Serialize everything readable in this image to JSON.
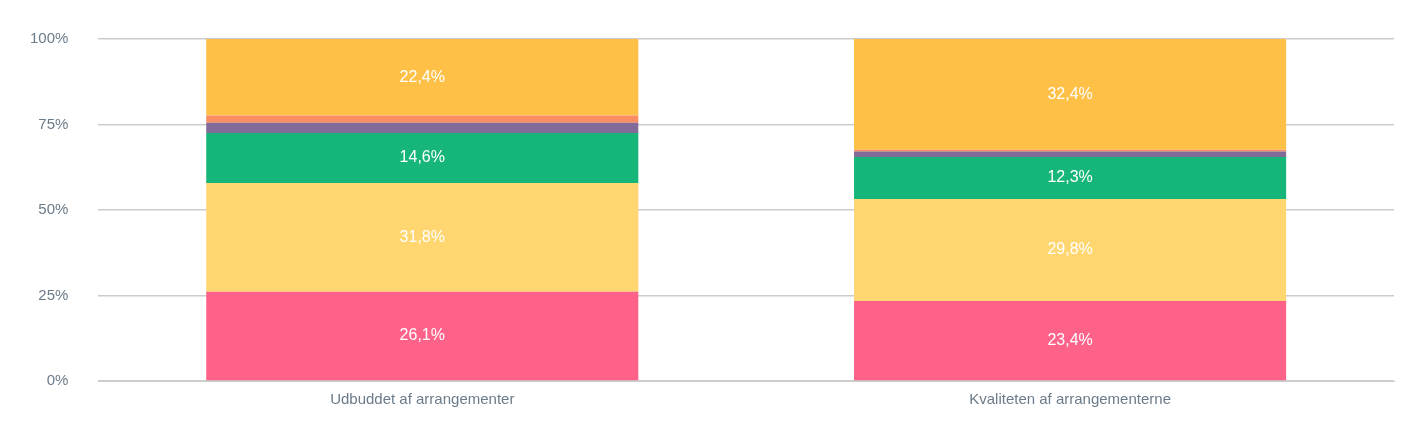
{
  "chart_data": {
    "type": "bar",
    "stacked": true,
    "categories": [
      "Udbuddet af arrangementer",
      "Kvaliteten af arrangementerne"
    ],
    "series": [
      {
        "color": "#fe6289",
        "values": [
          26.1,
          23.4
        ],
        "value_labels": [
          "26,1%",
          "23,4%"
        ]
      },
      {
        "color": "#ffd670",
        "values": [
          31.8,
          29.8
        ],
        "value_labels": [
          "31,8%",
          "29,8%"
        ]
      },
      {
        "color": "#16b57a",
        "values": [
          14.6,
          12.3
        ],
        "value_labels": [
          "14,6%",
          "12,3%"
        ]
      },
      {
        "color": "#826b98",
        "values": [
          3.0,
          1.6
        ],
        "value_labels": [
          null,
          null
        ]
      },
      {
        "color": "#f98c61",
        "values": [
          2.1,
          0.5
        ],
        "value_labels": [
          null,
          null
        ]
      },
      {
        "color": "#ffc048",
        "values": [
          22.4,
          32.4
        ],
        "value_labels": [
          "22,4%",
          "32,4%"
        ]
      }
    ],
    "ylim": [
      0,
      100
    ],
    "yticks": [
      {
        "value": 0,
        "label": "0%"
      },
      {
        "value": 25,
        "label": "25%"
      },
      {
        "value": 50,
        "label": "50%"
      },
      {
        "value": 75,
        "label": "75%"
      },
      {
        "value": 100,
        "label": "100%"
      }
    ],
    "grid": "y",
    "legend": false
  }
}
